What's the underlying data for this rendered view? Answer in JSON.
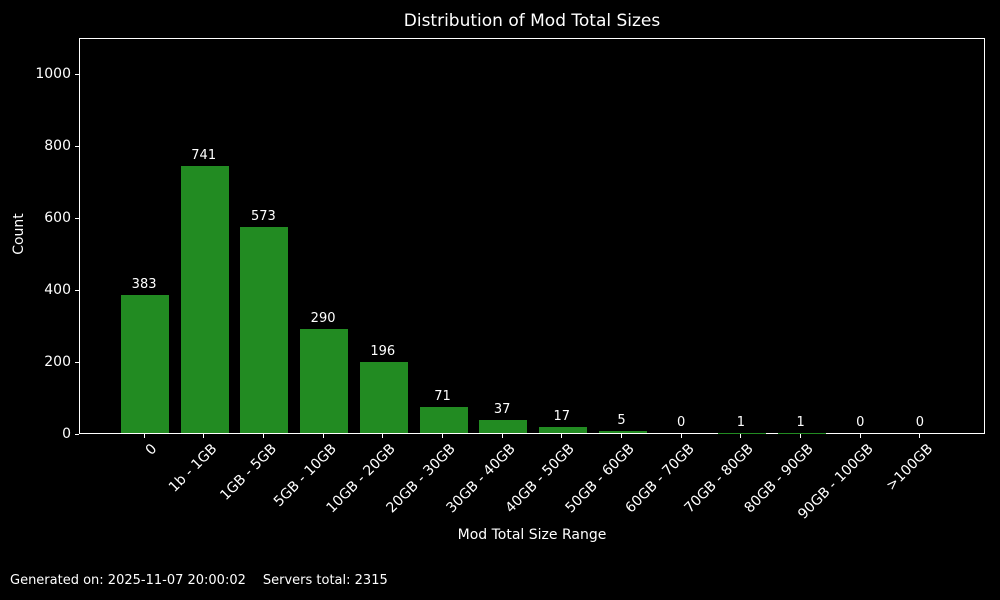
{
  "chart_data": {
    "type": "bar",
    "title": "Distribution of Mod Total Sizes",
    "xlabel": "Mod Total Size Range",
    "ylabel": "Count",
    "categories": [
      "0",
      "1b - 1GB",
      "1GB - 5GB",
      "5GB - 10GB",
      "10GB - 20GB",
      "20GB - 30GB",
      "30GB - 40GB",
      "40GB - 50GB",
      "50GB - 60GB",
      "60GB - 70GB",
      "70GB - 80GB",
      "80GB - 90GB",
      "90GB - 100GB",
      ">100GB"
    ],
    "values": [
      383,
      741,
      573,
      290,
      196,
      71,
      37,
      17,
      5,
      0,
      1,
      1,
      0,
      0
    ],
    "yticks": [
      0,
      200,
      400,
      600,
      800,
      1000
    ],
    "ylim": [
      0,
      1100
    ],
    "bar_rel_width": 0.8,
    "grid": false,
    "legend": null,
    "value_labels_shown": true,
    "xtick_rotation_deg": 45,
    "colors": {
      "bar": "#228B22",
      "background": "#000000",
      "text": "#ffffff",
      "axis": "#ffffff"
    }
  },
  "footer": {
    "generated_on": "Generated on: 2025-11-07 20:00:02",
    "servers_total": "Servers total: 2315"
  }
}
